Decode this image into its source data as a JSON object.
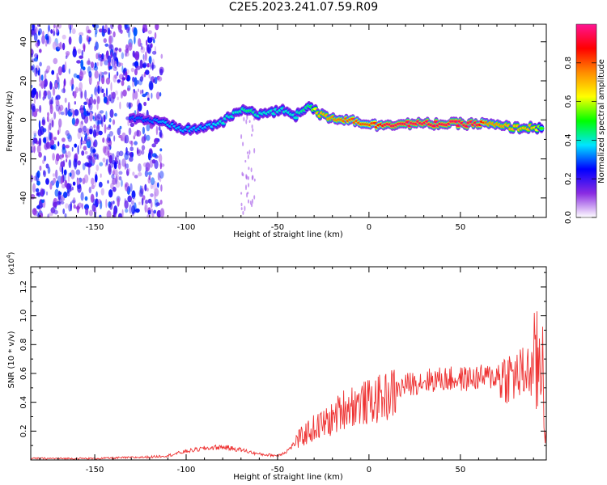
{
  "chart_data": [
    {
      "type": "heatmap",
      "title": "C2E5.2023.241.07.59.R09",
      "xlabel": "Height of straight line (km)",
      "ylabel": "Frequency (Hz)",
      "xlim": [
        -185,
        97
      ],
      "ylim": [
        -50,
        49
      ],
      "xticks": [
        -150,
        -100,
        -50,
        0,
        50
      ],
      "yticks": [
        -40,
        -20,
        0,
        20,
        40
      ],
      "grid": false,
      "colorbar": {
        "label": "Normalized spectral amplitude",
        "range": [
          0,
          1
        ],
        "ticks": [
          0.0,
          0.2,
          0.4,
          0.6,
          0.8
        ],
        "colors": [
          "#ffffff",
          "#8a2be2",
          "#0000ff",
          "#00e5ff",
          "#00ff00",
          "#ffff00",
          "#ff8c00",
          "#ff0000",
          "#ff1493"
        ]
      },
      "ridge": {
        "x": [
          -130,
          -120,
          -112,
          -105,
          -100,
          -90,
          -80,
          -72,
          -65,
          -60,
          -52,
          -45,
          -40,
          -35,
          -32,
          -28,
          -20,
          -10,
          0,
          5,
          10,
          20,
          30,
          40,
          50,
          60,
          65,
          70,
          80,
          90,
          95
        ],
        "y": [
          1,
          0,
          -2,
          -4,
          -5,
          -4,
          -1,
          4,
          5,
          3,
          4,
          5,
          2,
          6,
          8,
          3,
          1,
          0,
          -2,
          -3,
          -2,
          -2,
          -2,
          -2,
          -2,
          -2,
          -2,
          -3,
          -4,
          -4,
          -4
        ],
        "amplitude": [
          0.3,
          0.3,
          0.35,
          0.35,
          0.35,
          0.35,
          0.4,
          0.4,
          0.45,
          0.4,
          0.4,
          0.4,
          0.4,
          0.45,
          0.45,
          0.7,
          0.75,
          0.8,
          0.8,
          0.85,
          0.95,
          0.95,
          0.95,
          0.95,
          0.95,
          0.95,
          0.75,
          0.75,
          0.7,
          0.7,
          0.5
        ]
      },
      "noise_region_x": [
        -185,
        -113
      ]
    },
    {
      "type": "line",
      "xlabel": "Height of straight line (km)",
      "ylabel": "SNR (10 * v/v)",
      "y_multiplier": "(x10",
      "y_multiplier_exp": "4",
      "y_multiplier_close": ")",
      "xlim": [
        -185,
        97
      ],
      "ylim": [
        0,
        1.34
      ],
      "xticks": [
        -150,
        -100,
        -50,
        0,
        50
      ],
      "yticks": [
        0.2,
        0.4,
        0.6,
        0.8,
        1.0,
        1.2
      ],
      "grid": false,
      "color": "#ee3333",
      "series": [
        {
          "x": [
            -185,
            -150,
            -120,
            -110,
            -100,
            -90,
            -80,
            -70,
            -60,
            -50,
            -45,
            -40,
            -35,
            -30,
            -25,
            -20,
            -15,
            -10,
            -5,
            0,
            5,
            10,
            15,
            20,
            30,
            40,
            50,
            60,
            70,
            80,
            85,
            90,
            93,
            95,
            97
          ],
          "y": [
            0.01,
            0.01,
            0.02,
            0.03,
            0.06,
            0.08,
            0.09,
            0.07,
            0.04,
            0.03,
            0.06,
            0.12,
            0.18,
            0.22,
            0.25,
            0.28,
            0.35,
            0.38,
            0.39,
            0.4,
            0.42,
            0.44,
            0.48,
            0.52,
            0.55,
            0.56,
            0.56,
            0.57,
            0.58,
            0.58,
            0.6,
            0.62,
            0.65,
            0.8,
            0.05
          ]
        }
      ]
    }
  ]
}
